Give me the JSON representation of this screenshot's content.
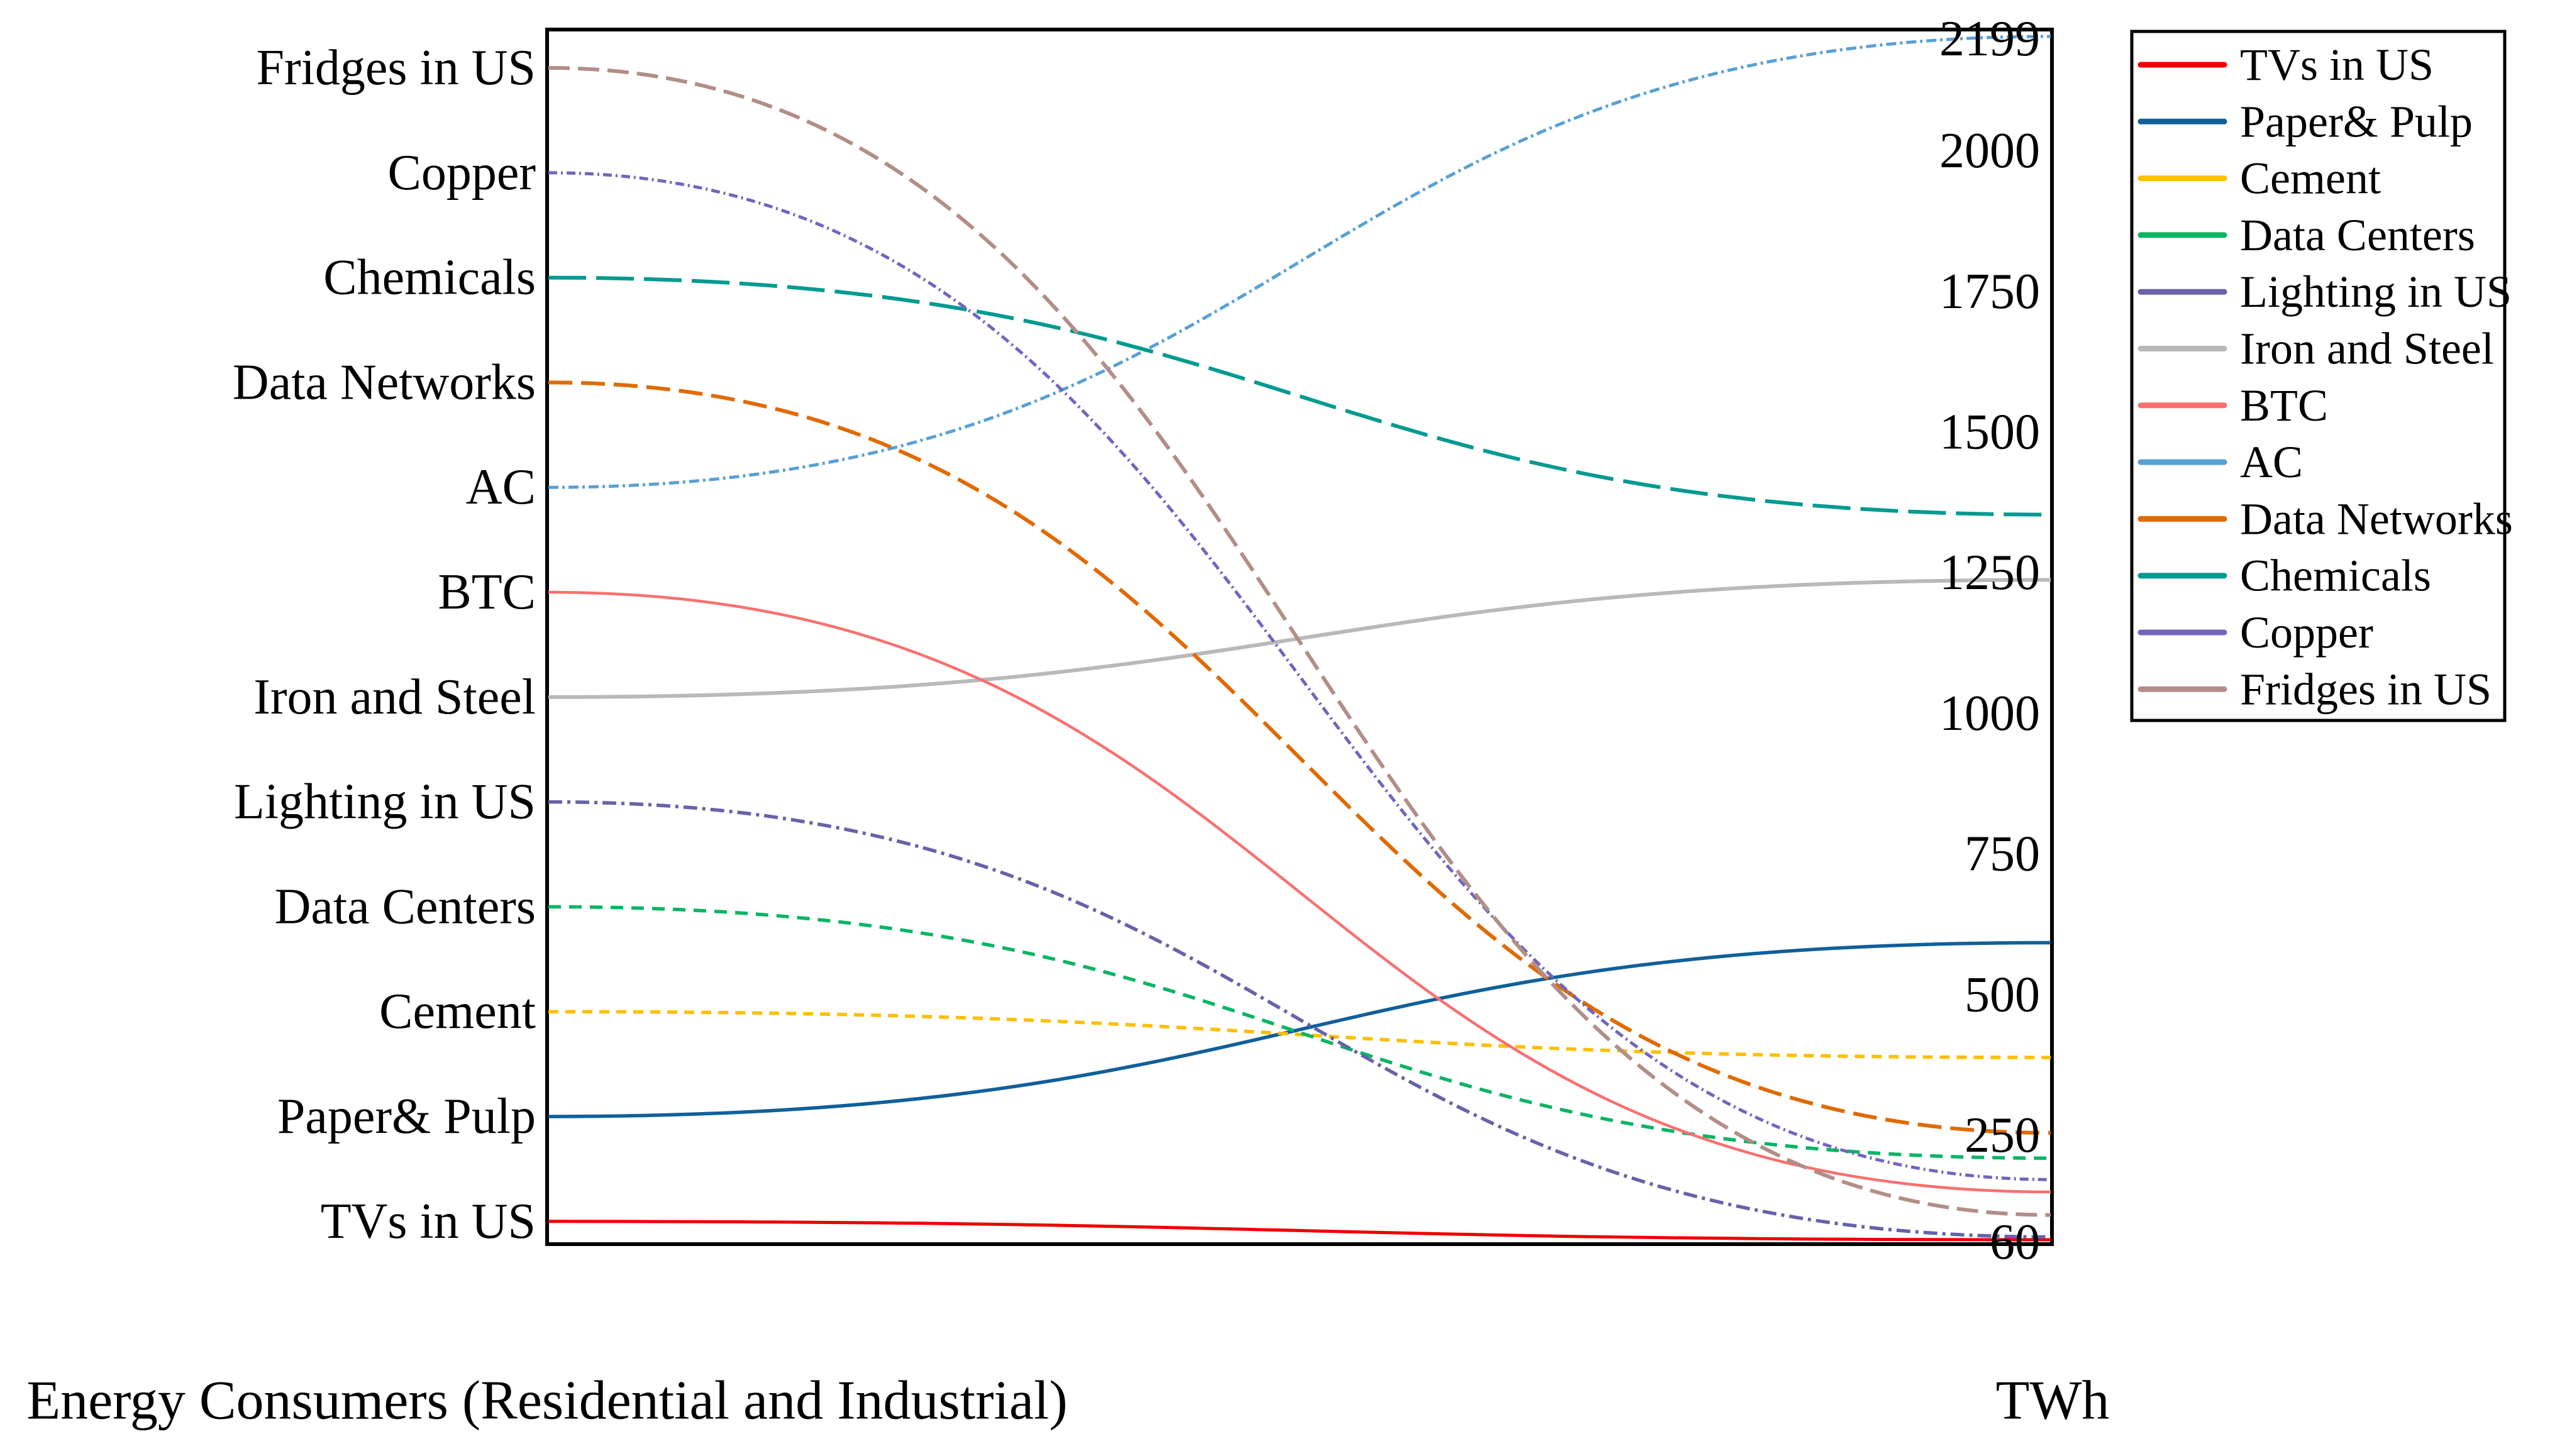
{
  "colors": {
    "background": "#ffffff",
    "axis": "#000000"
  },
  "chart_data": {
    "type": "line",
    "variant": "slopegraph-bump",
    "title": "",
    "grid": false,
    "left_axis": {
      "label": "Energy Consumers (Residential and Industrial)",
      "categories_top_to_bottom": [
        "Fridges in US",
        "Copper",
        "Chemicals",
        "Data Networks",
        "AC",
        "BTC",
        "Iron and Steel",
        "Lighting in US",
        "Data Centers",
        "Cement",
        "Paper& Pulp",
        "TVs in US"
      ]
    },
    "right_axis": {
      "label": "TWh",
      "min": 60,
      "max": 2199,
      "ticks": [
        2199,
        2000,
        1750,
        1500,
        1250,
        1000,
        750,
        500,
        250,
        60
      ]
    },
    "series": [
      {
        "name": "TVs in US",
        "value_twh": 60,
        "color": "#ee0000",
        "dash": "",
        "width": 5
      },
      {
        "name": "Paper& Pulp",
        "value_twh": 588,
        "color": "#10609a",
        "dash": "",
        "width": 5.5
      },
      {
        "name": "Cement",
        "value_twh": 384,
        "color": "#fdbf00",
        "dash": "16 11",
        "width": 5.5
      },
      {
        "name": "Data Centers",
        "value_twh": 205,
        "color": "#0ab564",
        "dash": "20 13",
        "width": 5.5
      },
      {
        "name": "Lighting in US",
        "value_twh": 65,
        "color": "#6762a8",
        "dash": "22 8 5 8",
        "width": 5.5
      },
      {
        "name": "Iron and Steel",
        "value_twh": 1233,
        "color": "#b9b9b9",
        "dash": "",
        "width": 6
      },
      {
        "name": "BTC",
        "value_twh": 145,
        "color": "#f87070",
        "dash": "",
        "width": 4.5
      },
      {
        "name": "AC",
        "value_twh": 2199,
        "color": "#58a0d6",
        "dash": "16 6 4 6",
        "width": 5
      },
      {
        "name": "Data Networks",
        "value_twh": 250,
        "color": "#e06a00",
        "dash": "38 14",
        "width": 6
      },
      {
        "name": "Chemicals",
        "value_twh": 1349,
        "color": "#019a90",
        "dash": "60 16",
        "width": 6
      },
      {
        "name": "Copper",
        "value_twh": 167,
        "color": "#7066be",
        "dash": "14 6 3 6",
        "width": 5
      },
      {
        "name": "Fridges in US",
        "value_twh": 104,
        "color": "#b28e87",
        "dash": "34 13",
        "width": 6
      }
    ],
    "legend": {
      "position": "outside-right",
      "entries_follow_series_order": true
    }
  }
}
